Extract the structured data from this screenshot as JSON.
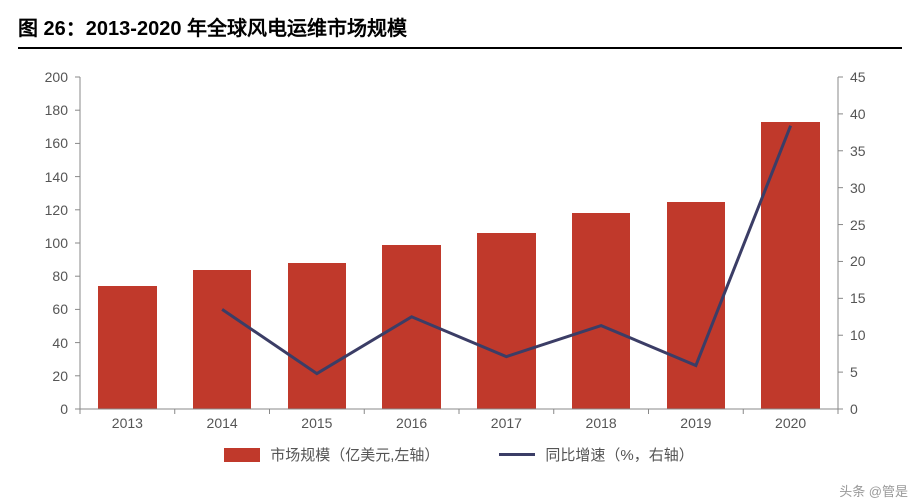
{
  "title": "图 26：2013-2020 年全球风电运维市场规模",
  "watermark": "头条 @管是",
  "chart": {
    "type": "bar+line",
    "categories": [
      "2013",
      "2014",
      "2015",
      "2016",
      "2017",
      "2018",
      "2019",
      "2020"
    ],
    "bars": {
      "series_name": "市场规模",
      "legend_label": "市场规模（亿美元,左轴）",
      "values": [
        74,
        84,
        88,
        99,
        106,
        118,
        125,
        173
      ],
      "color": "#c0392b",
      "yaxis": "left",
      "bar_width_frac": 0.62
    },
    "line": {
      "series_name": "同比增速",
      "legend_label": "同比增速（%，右轴）",
      "values": [
        null,
        13.5,
        4.8,
        12.5,
        7.1,
        11.3,
        5.9,
        38.4
      ],
      "color": "#3b3d66",
      "line_width": 3,
      "yaxis": "right"
    },
    "y_left": {
      "min": 0,
      "max": 200,
      "step": 20,
      "label_fontsize": 14,
      "label_color": "#555"
    },
    "y_right": {
      "min": 0,
      "max": 45,
      "step": 5,
      "label_fontsize": 14,
      "label_color": "#555"
    },
    "axis_color": "#888",
    "background_color": "#ffffff",
    "title_fontsize": 20,
    "title_color": "#000000",
    "legend_fontsize": 15
  }
}
